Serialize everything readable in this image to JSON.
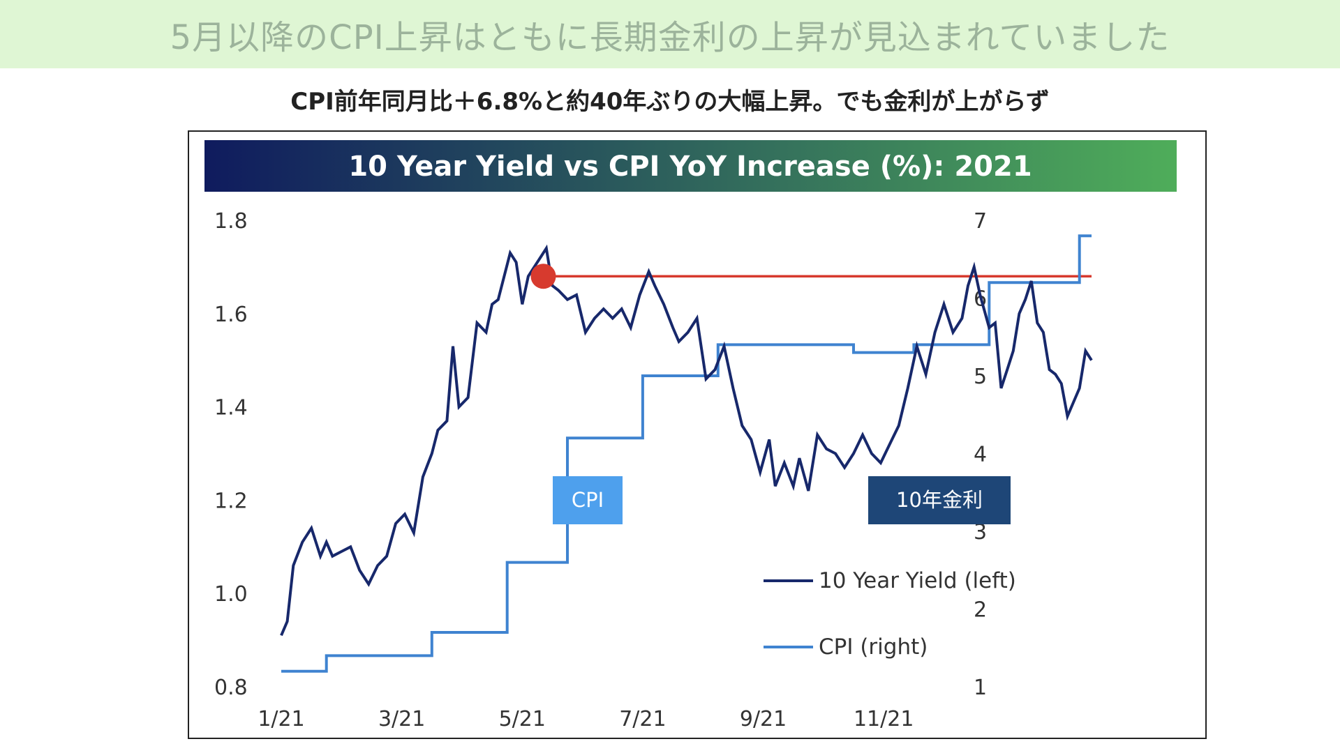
{
  "slide": {
    "title": "5月以降のCPI上昇はともに長期金利の上昇が見込まれていました",
    "subtitle": "CPI前年同月比＋6.8%と約40年ぶりの大幅上昇。でも金利が上がらず"
  },
  "colors": {
    "yield_line": "#17286b",
    "cpi_line": "#3f83d0",
    "reference_line": "#d73a2e",
    "cpi_tag_bg": "#4ea0ed",
    "yield_tag_bg": "#1e4677",
    "title_gradient_start": "#0f1b5e",
    "title_gradient_end": "#4fad5a"
  },
  "chart_data": {
    "type": "line",
    "title": "10 Year Yield vs CPI YoY Increase (%): 2021",
    "x_ticks": [
      "1/21",
      "3/21",
      "5/21",
      "7/21",
      "9/21",
      "11/21"
    ],
    "y_left": {
      "ticks": [
        "1.8",
        "1.6",
        "1.4",
        "1.2",
        "1.0",
        "0.8"
      ],
      "range": [
        0.8,
        1.8
      ]
    },
    "y_right": {
      "ticks": [
        "7",
        "6",
        "5",
        "4",
        "3",
        "2",
        "1"
      ],
      "range": [
        1,
        7
      ]
    },
    "legend": {
      "yield": "10 Year Yield (left)",
      "cpi": "CPI (right)"
    },
    "annotations": {
      "cpi_tag": "CPI",
      "yield_tag": "10年金利"
    },
    "series": [
      {
        "name": "10 Year Yield (left)",
        "axis": "left",
        "points": [
          [
            1.0,
            0.91
          ],
          [
            1.1,
            0.94
          ],
          [
            1.2,
            1.06
          ],
          [
            1.35,
            1.11
          ],
          [
            1.5,
            1.14
          ],
          [
            1.65,
            1.08
          ],
          [
            1.75,
            1.11
          ],
          [
            1.85,
            1.08
          ],
          [
            2.0,
            1.09
          ],
          [
            2.15,
            1.1
          ],
          [
            2.3,
            1.05
          ],
          [
            2.45,
            1.02
          ],
          [
            2.6,
            1.06
          ],
          [
            2.75,
            1.08
          ],
          [
            2.9,
            1.15
          ],
          [
            3.05,
            1.17
          ],
          [
            3.2,
            1.13
          ],
          [
            3.35,
            1.25
          ],
          [
            3.5,
            1.3
          ],
          [
            3.6,
            1.35
          ],
          [
            3.75,
            1.37
          ],
          [
            3.85,
            1.53
          ],
          [
            3.95,
            1.4
          ],
          [
            4.1,
            1.42
          ],
          [
            4.25,
            1.58
          ],
          [
            4.4,
            1.56
          ],
          [
            4.5,
            1.62
          ],
          [
            4.6,
            1.63
          ],
          [
            4.7,
            1.68
          ],
          [
            4.8,
            1.73
          ],
          [
            4.9,
            1.71
          ],
          [
            5.0,
            1.62
          ],
          [
            5.1,
            1.68
          ],
          [
            5.2,
            1.7
          ],
          [
            5.3,
            1.72
          ],
          [
            5.4,
            1.74
          ],
          [
            5.5,
            1.66
          ],
          [
            5.6,
            1.65
          ],
          [
            5.75,
            1.63
          ],
          [
            5.9,
            1.64
          ],
          [
            6.05,
            1.56
          ],
          [
            6.2,
            1.59
          ],
          [
            6.35,
            1.61
          ],
          [
            6.5,
            1.59
          ],
          [
            6.65,
            1.61
          ],
          [
            6.8,
            1.57
          ],
          [
            6.95,
            1.64
          ],
          [
            7.1,
            1.69
          ],
          [
            7.2,
            1.66
          ],
          [
            7.35,
            1.62
          ],
          [
            7.5,
            1.57
          ],
          [
            7.6,
            1.54
          ],
          [
            7.75,
            1.56
          ],
          [
            7.9,
            1.59
          ],
          [
            8.05,
            1.46
          ],
          [
            8.2,
            1.48
          ],
          [
            8.35,
            1.53
          ],
          [
            8.5,
            1.44
          ],
          [
            8.65,
            1.36
          ],
          [
            8.8,
            1.33
          ],
          [
            8.95,
            1.26
          ],
          [
            9.1,
            1.33
          ],
          [
            9.2,
            1.23
          ],
          [
            9.35,
            1.28
          ],
          [
            9.5,
            1.23
          ],
          [
            9.6,
            1.29
          ],
          [
            9.75,
            1.22
          ],
          [
            9.9,
            1.34
          ],
          [
            10.05,
            1.31
          ],
          [
            10.2,
            1.3
          ],
          [
            10.35,
            1.27
          ],
          [
            10.5,
            1.3
          ],
          [
            10.65,
            1.34
          ],
          [
            10.8,
            1.3
          ],
          [
            10.95,
            1.28
          ],
          [
            11.1,
            1.32
          ],
          [
            11.25,
            1.36
          ],
          [
            11.4,
            1.44
          ],
          [
            11.55,
            1.53
          ],
          [
            11.7,
            1.47
          ],
          [
            11.85,
            1.56
          ],
          [
            12.0,
            1.62
          ],
          [
            12.15,
            1.56
          ],
          [
            12.3,
            1.59
          ],
          [
            12.4,
            1.66
          ],
          [
            12.5,
            1.7
          ],
          [
            12.6,
            1.64
          ],
          [
            12.75,
            1.57
          ],
          [
            12.85,
            1.58
          ],
          [
            12.95,
            1.44
          ],
          [
            13.05,
            1.48
          ],
          [
            13.15,
            1.52
          ],
          [
            13.25,
            1.6
          ],
          [
            13.35,
            1.63
          ],
          [
            13.45,
            1.67
          ],
          [
            13.55,
            1.58
          ],
          [
            13.65,
            1.56
          ],
          [
            13.75,
            1.48
          ],
          [
            13.85,
            1.47
          ],
          [
            13.95,
            1.45
          ],
          [
            14.05,
            1.38
          ],
          [
            14.15,
            1.41
          ],
          [
            14.25,
            1.44
          ],
          [
            14.35,
            1.52
          ],
          [
            14.45,
            1.5
          ]
        ]
      },
      {
        "name": "CPI (right)",
        "axis": "right",
        "steps": [
          [
            1.0,
            1.2
          ],
          [
            1.75,
            1.4
          ],
          [
            3.5,
            1.7
          ],
          [
            4.75,
            2.6
          ],
          [
            5.75,
            4.2
          ],
          [
            7.0,
            5.0
          ],
          [
            8.25,
            5.4
          ],
          [
            10.5,
            5.3
          ],
          [
            11.5,
            5.4
          ],
          [
            12.75,
            6.2
          ],
          [
            14.25,
            6.8
          ],
          [
            14.45,
            6.8
          ]
        ]
      },
      {
        "name": "",
        "axis": "left",
        "points": [
          [
            5.35,
            1.68
          ],
          [
            14.45,
            1.68
          ]
        ]
      }
    ]
  }
}
